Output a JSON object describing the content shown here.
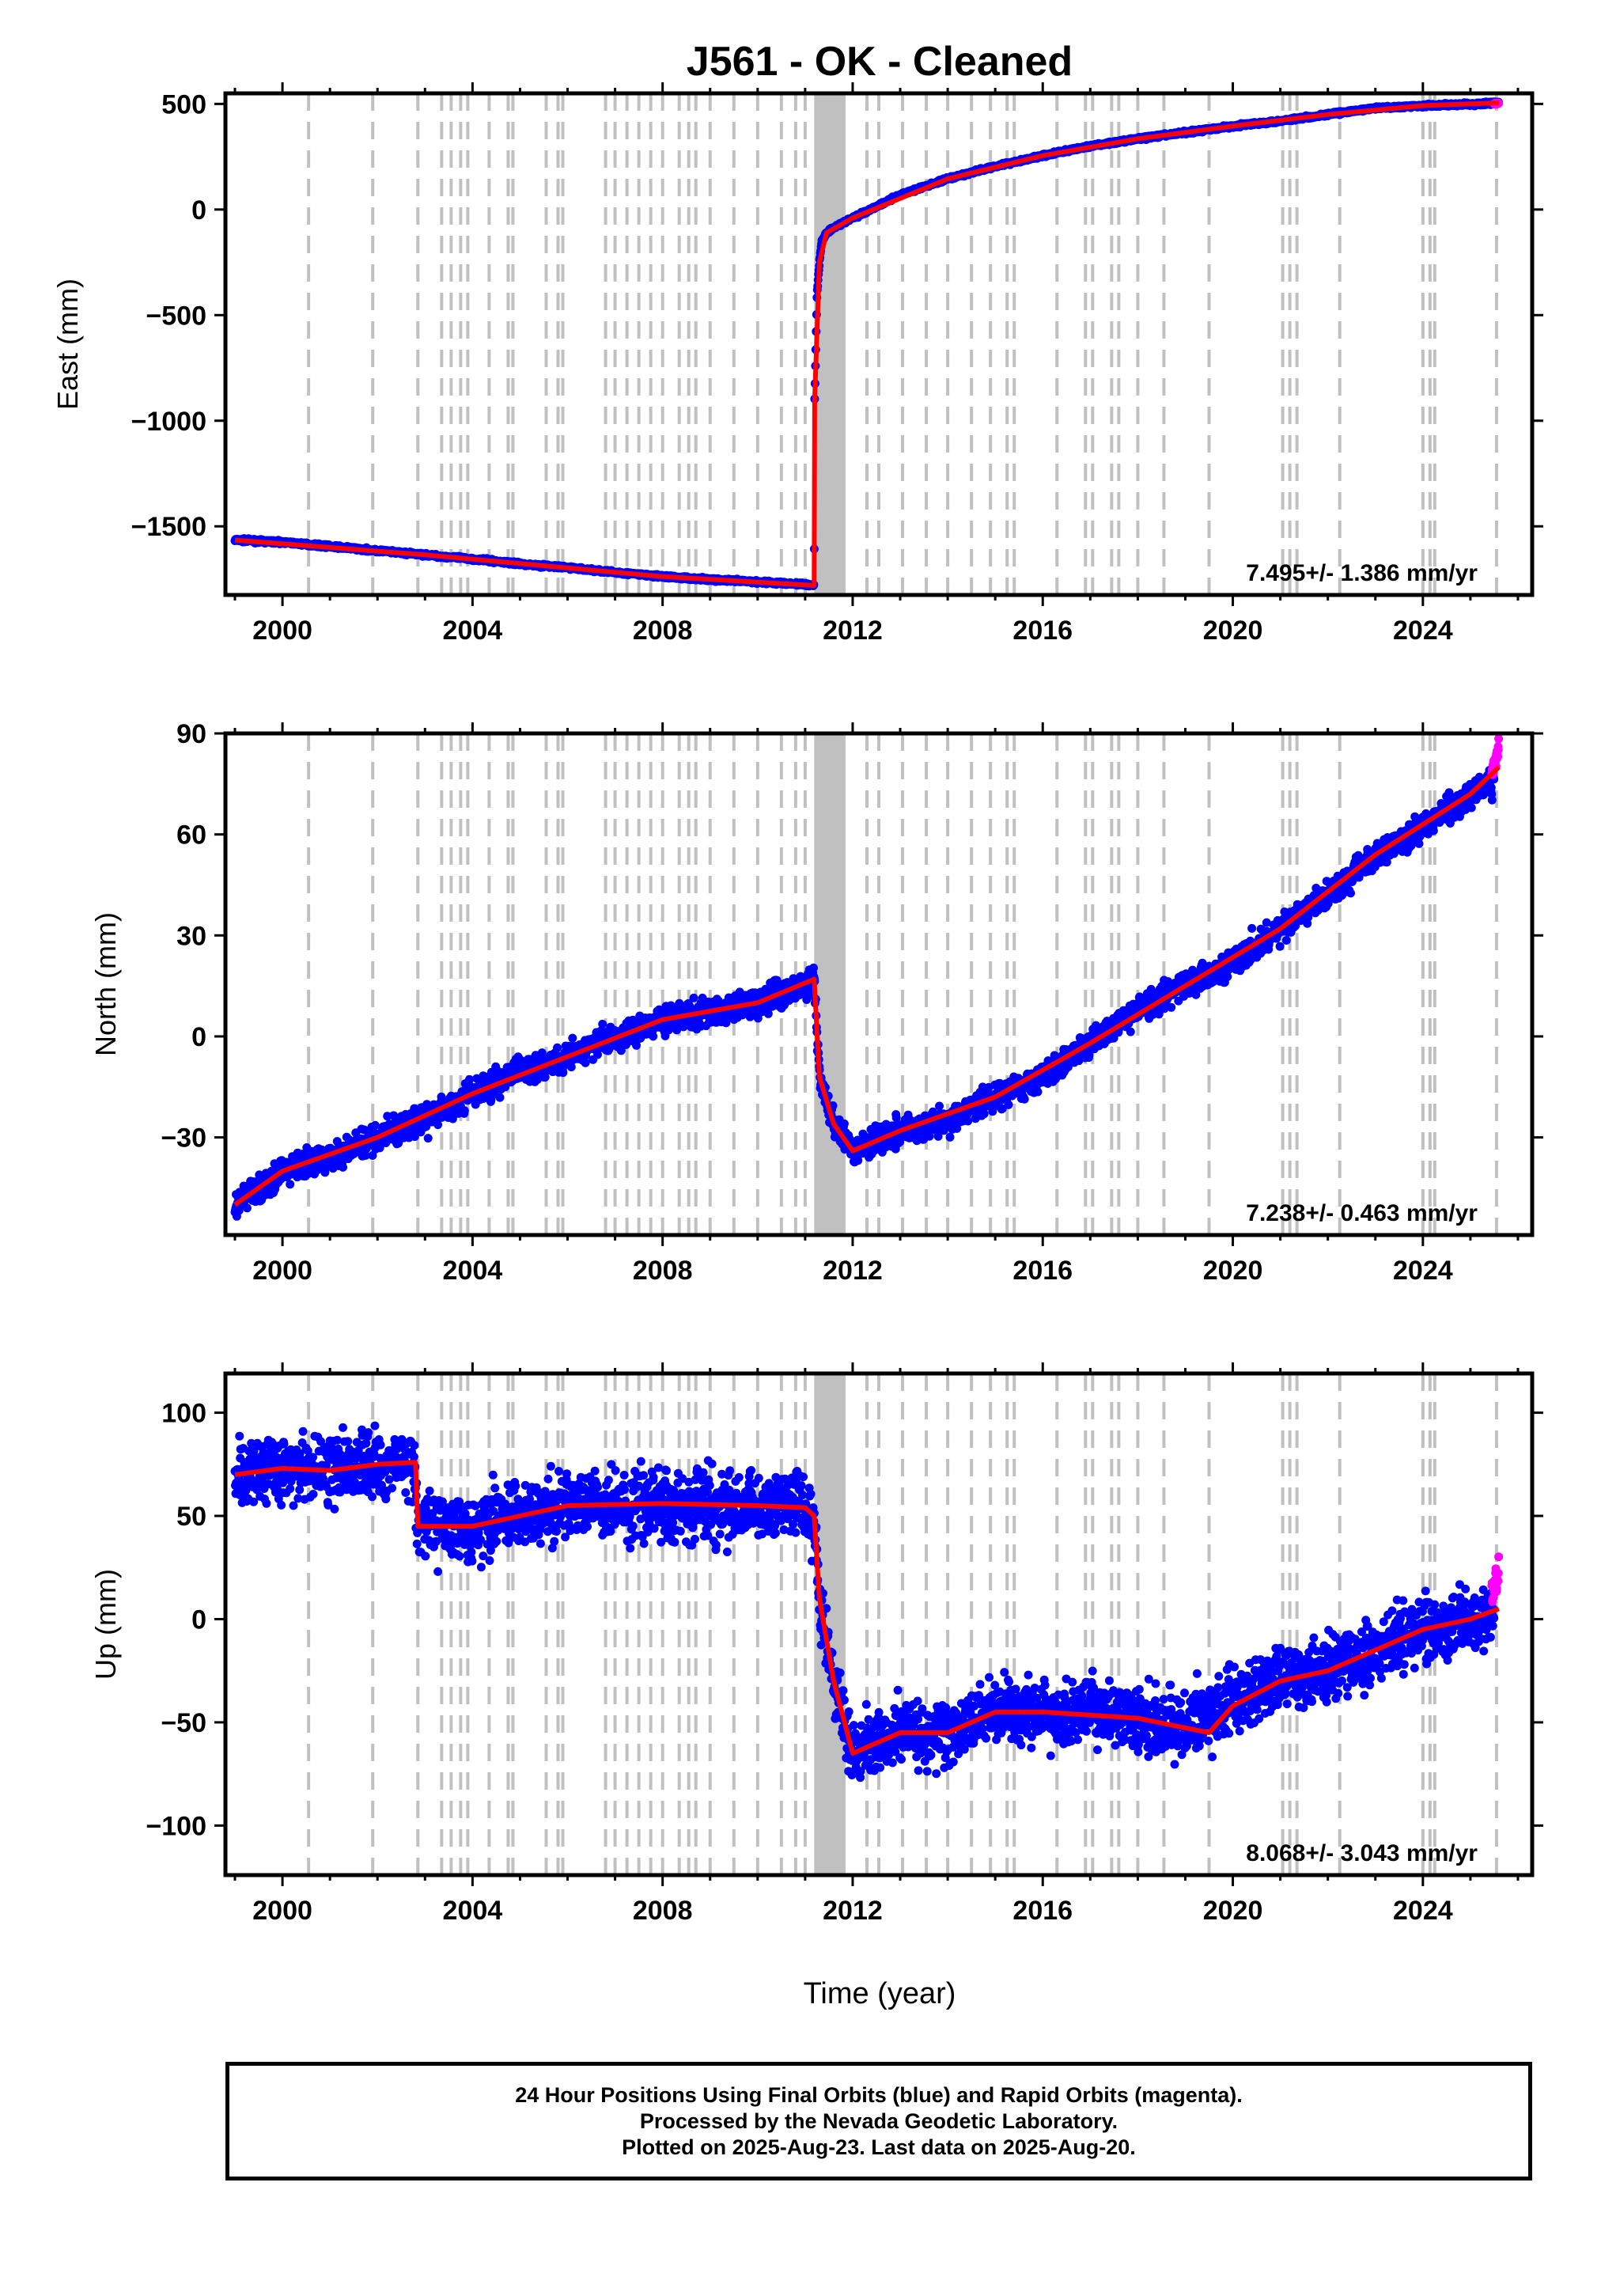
{
  "title": "J561  - OK - Cleaned",
  "xlabel": "Time (year)",
  "footer": {
    "line1": "24 Hour Positions Using Final Orbits (blue) and Rapid Orbits (magenta).",
    "line2": "Processed by the Nevada Geodetic Laboratory.",
    "line3": "Plotted on 2025-Aug-23. Last data on 2025-Aug-20."
  },
  "colors": {
    "final": "#0000ff",
    "rapid": "#ff00ff",
    "model": "#ff0000",
    "event": "#c0c0c0"
  },
  "chart_data": [
    {
      "type": "scatter",
      "ylabel": "East (mm)",
      "xlim": [
        1998.8,
        2026.3
      ],
      "ylim": [
        -1825,
        550
      ],
      "xticks": [
        2000,
        2004,
        2008,
        2012,
        2016,
        2020,
        2024
      ],
      "yticks": [
        500,
        0,
        -500,
        -1000,
        -1500
      ],
      "ytick_labels": [
        "500",
        "0",
        "−500",
        "−1000",
        "−1500"
      ],
      "rate_label": "7.495+/- 1.386 mm/yr",
      "series": [
        {
          "role": "final",
          "x": [
            1999.0,
            2000.0,
            2001.0,
            2002.0,
            2003.0,
            2004.0,
            2005.0,
            2006.0,
            2007.0,
            2008.0,
            2009.0,
            2010.0,
            2011.0,
            2011.19,
            2011.2,
            2011.25,
            2011.3,
            2011.35,
            2011.45,
            2011.6,
            2012.0,
            2013.0,
            2014.0,
            2015.0,
            2016.0,
            2017.0,
            2018.0,
            2019.0,
            2020.0,
            2021.0,
            2022.0,
            2023.0,
            2024.0,
            2025.0,
            2025.6
          ],
          "y": [
            -1565,
            -1575,
            -1595,
            -1615,
            -1635,
            -1655,
            -1678,
            -1695,
            -1718,
            -1738,
            -1752,
            -1763,
            -1775,
            -1780,
            -900,
            -400,
            -250,
            -150,
            -110,
            -85,
            -40,
            70,
            145,
            205,
            255,
            300,
            335,
            365,
            395,
            420,
            450,
            480,
            492,
            498,
            505
          ]
        },
        {
          "role": "rapid",
          "x": [
            2025.5,
            2025.6
          ],
          "y": [
            500,
            505
          ]
        }
      ],
      "model": {
        "x": [
          1999.0,
          2003.0,
          2008.0,
          2011.19,
          2011.2,
          2011.3,
          2011.45,
          2012.0,
          2014.0,
          2016.0,
          2018.0,
          2020.0,
          2022.0,
          2024.0,
          2025.6
        ],
        "y": [
          -1565,
          -1635,
          -1738,
          -1780,
          -900,
          -250,
          -110,
          -40,
          145,
          255,
          335,
          395,
          450,
          492,
          505
        ]
      }
    },
    {
      "type": "scatter",
      "ylabel": "North (mm)",
      "xlim": [
        1998.8,
        2026.3
      ],
      "ylim": [
        -59,
        90
      ],
      "xticks": [
        2000,
        2004,
        2008,
        2012,
        2016,
        2020,
        2024
      ],
      "yticks": [
        90,
        60,
        30,
        0,
        -30
      ],
      "ytick_labels": [
        "90",
        "60",
        "30",
        "0",
        "−30"
      ],
      "rate_label": "7.238+/- 0.463 mm/yr",
      "series": [
        {
          "role": "final",
          "x": [
            1999.0,
            1999.5,
            2000.0,
            2001.0,
            2002.0,
            2003.0,
            2004.0,
            2005.0,
            2006.0,
            2007.0,
            2008.0,
            2009.0,
            2010.0,
            2011.0,
            2011.19,
            2011.3,
            2011.6,
            2012.0,
            2012.5,
            2013.0,
            2014.0,
            2015.0,
            2016.0,
            2017.0,
            2018.0,
            2019.0,
            2020.0,
            2021.0,
            2022.0,
            2023.0,
            2024.0,
            2025.0,
            2025.5
          ],
          "y": [
            -50,
            -45,
            -40,
            -36,
            -30,
            -25,
            -17,
            -10,
            -6,
            0,
            5,
            7,
            10,
            15,
            17,
            -12,
            -26,
            -34,
            -30,
            -28,
            -25,
            -18,
            -12,
            -2,
            8,
            15,
            22,
            32,
            42,
            54,
            62,
            72,
            76
          ]
        },
        {
          "role": "rapid",
          "x": [
            2025.45,
            2025.5,
            2025.55,
            2025.6
          ],
          "y": [
            78,
            81,
            84,
            87
          ]
        }
      ],
      "model": {
        "x": [
          1999.0,
          2000.0,
          2002.0,
          2004.0,
          2006.0,
          2008.0,
          2010.0,
          2011.19,
          2011.3,
          2011.6,
          2012.0,
          2013.0,
          2015.0,
          2017.0,
          2019.0,
          2021.0,
          2023.0,
          2025.0,
          2025.6
        ],
        "y": [
          -50,
          -40,
          -30,
          -17,
          -6,
          5,
          10,
          17,
          -12,
          -26,
          -34,
          -28,
          -18,
          -2,
          15,
          32,
          54,
          72,
          80
        ]
      }
    },
    {
      "type": "scatter",
      "ylabel": "Up (mm)",
      "xlim": [
        1998.8,
        2026.3
      ],
      "ylim": [
        -124,
        119
      ],
      "xticks": [
        2000,
        2004,
        2008,
        2012,
        2016,
        2020,
        2024
      ],
      "yticks": [
        100,
        50,
        0,
        -50,
        -100
      ],
      "ytick_labels": [
        "100",
        "50",
        "0",
        "−50",
        "−100"
      ],
      "rate_label": "8.068+/- 3.043 mm/yr",
      "series": [
        {
          "role": "final",
          "x": [
            1999.0,
            2000.0,
            2001.0,
            2002.0,
            2002.75,
            2002.85,
            2004.0,
            2005.0,
            2006.0,
            2007.0,
            2008.0,
            2009.0,
            2010.0,
            2011.0,
            2011.19,
            2011.3,
            2011.6,
            2012.0,
            2013.0,
            2014.0,
            2015.0,
            2016.0,
            2017.0,
            2018.0,
            2019.0,
            2020.0,
            2021.0,
            2022.0,
            2023.0,
            2024.0,
            2025.0,
            2025.5
          ],
          "y": [
            70,
            73,
            72,
            75,
            76,
            45,
            45,
            50,
            55,
            55,
            56,
            55,
            55,
            54,
            50,
            10,
            -30,
            -65,
            -55,
            -55,
            -45,
            -45,
            -45,
            -48,
            -52,
            -40,
            -30,
            -25,
            -15,
            -5,
            0,
            2
          ]
        },
        {
          "role": "rapid",
          "x": [
            2025.45,
            2025.5,
            2025.55,
            2025.6
          ],
          "y": [
            8,
            12,
            18,
            25
          ]
        }
      ],
      "model": {
        "x": [
          1999.0,
          2000.0,
          2001.0,
          2002.0,
          2002.8,
          2002.85,
          2004.0,
          2005.0,
          2006.0,
          2008.0,
          2010.0,
          2011.0,
          2011.19,
          2011.3,
          2011.6,
          2012.0,
          2013.0,
          2014.0,
          2015.0,
          2016.0,
          2018.0,
          2019.5,
          2020.0,
          2021.0,
          2022.0,
          2023.0,
          2024.0,
          2025.0,
          2025.6
        ],
        "y": [
          70,
          73,
          72,
          75,
          76,
          45,
          45,
          50,
          55,
          56,
          55,
          54,
          50,
          10,
          -30,
          -65,
          -55,
          -55,
          -45,
          -45,
          -48,
          -55,
          -42,
          -30,
          -25,
          -15,
          -5,
          0,
          5
        ]
      }
    }
  ],
  "event_lines": [
    2000.55,
    2001.9,
    2002.85,
    2003.35,
    2003.55,
    2003.75,
    2003.9,
    2004.35,
    2004.75,
    2004.85,
    2005.55,
    2005.8,
    2005.9,
    2006.8,
    2007.0,
    2007.25,
    2007.5,
    2007.75,
    2008.0,
    2008.35,
    2008.55,
    2008.7,
    2009.0,
    2009.5,
    2010.0,
    2010.5,
    2010.8,
    2011.0,
    2012.3,
    2012.55,
    2013.05,
    2013.55,
    2014.0,
    2014.5,
    2014.9,
    2015.25,
    2015.4,
    2016.3,
    2016.9,
    2017.05,
    2017.45,
    2017.6,
    2018.0,
    2018.55,
    2019.5,
    2021.05,
    2021.2,
    2021.35,
    2022.25,
    2024.0,
    2024.15,
    2024.25,
    2025.55
  ],
  "event_band": [
    2011.19,
    2011.85
  ]
}
